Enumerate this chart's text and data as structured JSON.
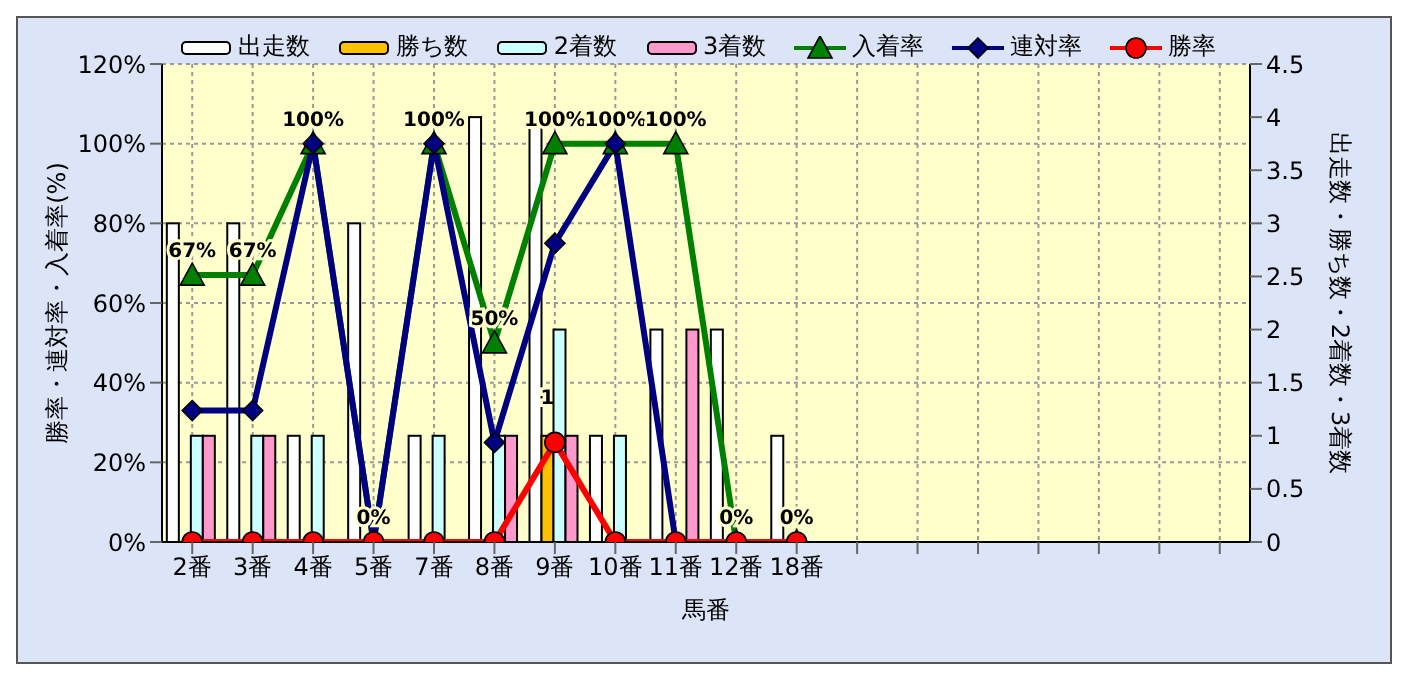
{
  "chart_data": {
    "type": "bar",
    "xlabel": "馬番",
    "ylabel": "勝率・連対率・入着率(%)",
    "y2label": "出走数・勝ち数・2着数・3着数",
    "categories": [
      "2番",
      "3番",
      "4番",
      "5番",
      "7番",
      "8番",
      "9番",
      "10番",
      "11番",
      "12番",
      "18番",
      null,
      null,
      null,
      null,
      null,
      null,
      null
    ],
    "series": [
      {
        "name": "出走数",
        "axis": "y2",
        "color": "#ffffff",
        "values": [
          3,
          3,
          1,
          3,
          1,
          4,
          4,
          1,
          2,
          2,
          1,
          null,
          null,
          null,
          null,
          null,
          null,
          null
        ]
      },
      {
        "name": "勝ち数",
        "axis": "y2",
        "color": "#ffc000",
        "values": [
          0,
          0,
          0,
          0,
          0,
          0,
          1,
          0,
          0,
          0,
          0,
          null,
          null,
          null,
          null,
          null,
          null,
          null
        ],
        "value_labels": [
          null,
          null,
          null,
          null,
          null,
          null,
          "1",
          null,
          null,
          null,
          null,
          null,
          null,
          null,
          null,
          null,
          null,
          null
        ]
      },
      {
        "name": "2着数",
        "axis": "y2",
        "color": "#ccffff",
        "values": [
          1,
          1,
          1,
          0,
          1,
          1,
          2,
          1,
          0,
          0,
          0,
          null,
          null,
          null,
          null,
          null,
          null,
          null
        ]
      },
      {
        "name": "3着数",
        "axis": "y2",
        "color": "#ff99cc",
        "values": [
          1,
          1,
          0,
          0,
          0,
          1,
          1,
          0,
          2,
          0,
          0,
          null,
          null,
          null,
          null,
          null,
          null,
          null
        ]
      },
      {
        "name": "入着率",
        "type": "line",
        "marker": "triangle",
        "color": "#008000",
        "values": [
          67,
          67,
          100,
          0,
          100,
          50,
          100,
          100,
          100,
          0,
          0,
          null,
          null,
          null,
          null,
          null,
          null,
          null
        ],
        "value_labels": [
          "67%",
          "67%",
          "100%",
          "0%",
          "100%",
          "50%",
          "100%",
          "100%",
          "100%",
          "0%",
          "0%",
          null,
          null,
          null,
          null,
          null,
          null,
          null
        ]
      },
      {
        "name": "連対率",
        "type": "line",
        "marker": "diamond",
        "color": "#000080",
        "values": [
          33,
          33,
          100,
          0,
          100,
          25,
          75,
          100,
          0,
          0,
          0,
          null,
          null,
          null,
          null,
          null,
          null,
          null
        ]
      },
      {
        "name": "勝率",
        "type": "line",
        "marker": "circle",
        "color": "#ff0000",
        "values": [
          0,
          0,
          0,
          0,
          0,
          0,
          25,
          0,
          0,
          0,
          0,
          null,
          null,
          null,
          null,
          null,
          null,
          null
        ]
      }
    ],
    "ylim": [
      0,
      120
    ],
    "yticks": [
      {
        "value": 0,
        "label": "0%"
      },
      {
        "value": 20,
        "label": "20%"
      },
      {
        "value": 40,
        "label": "40%"
      },
      {
        "value": 60,
        "label": "60%"
      },
      {
        "value": 80,
        "label": "80%"
      },
      {
        "value": 100,
        "label": "100%"
      },
      {
        "value": 120,
        "label": "120%"
      }
    ],
    "y2lim": [
      0,
      4.5
    ],
    "y2ticks": [
      0,
      0.5,
      1,
      1.5,
      2,
      2.5,
      3,
      3.5,
      4,
      4.5
    ],
    "grid": true,
    "legend": "top"
  }
}
